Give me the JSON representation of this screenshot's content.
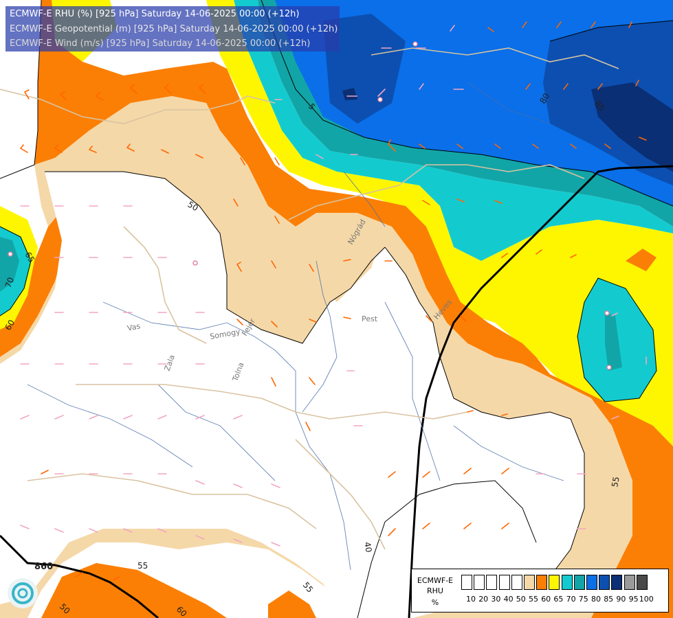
{
  "titles": [
    "ECMWF-E RHU (%) [925 hPa] Saturday 14-06-2025 00:00 (+12h)",
    "ECMWF-E Geopotential (m) [925 hPa] Saturday 14-06-2025 00:00 (+12h)",
    "ECMWF-E Wind (m/s) [925 hPa] Saturday 14-06-2025 00:00 (+12h)"
  ],
  "colors": {
    "title_text_1": "#ffffff",
    "title_text_2": "#e6e6e6",
    "title_text_3": "#d8d8d8",
    "rhu_55": "#f5d8a8",
    "rhu_60": "#fb7f05",
    "rhu_65": "#fdf600",
    "rhu_70": "#13cbcf",
    "rhu_75": "#12a5a8",
    "rhu_80": "#0a6fe8",
    "rhu_85": "#0c4fb0",
    "rhu_90": "#0a2f74"
  },
  "contour_labels": {
    "rhu": [
      "50",
      "55",
      "60",
      "65",
      "70",
      "80",
      "85",
      "40",
      "55",
      "55",
      "50",
      "60",
      "5"
    ],
    "geopotential": [
      "860"
    ]
  },
  "places": [
    "Pest",
    "Vas",
    "Zala",
    "Tolna",
    "Somogy",
    "Fejér",
    "Heves",
    "Nógrád"
  ],
  "legend": {
    "name_lines": [
      "ECMWF-E",
      "RHU",
      "%"
    ],
    "ticks": [
      "10",
      "20",
      "30",
      "40",
      "50",
      "55",
      "60",
      "65",
      "70",
      "75",
      "80",
      "85",
      "90",
      "95",
      "100"
    ],
    "swatch_colors": [
      "#ffffff",
      "#ffffff",
      "#ffffff",
      "#ffffff",
      "#ffffff",
      "#f5d8a8",
      "#fb7f05",
      "#fdf600",
      "#13cbcf",
      "#12a5a8",
      "#0a6fe8",
      "#0c4fb0",
      "#0a2f74",
      "#9a9a9a",
      "#4a4a4a"
    ]
  }
}
